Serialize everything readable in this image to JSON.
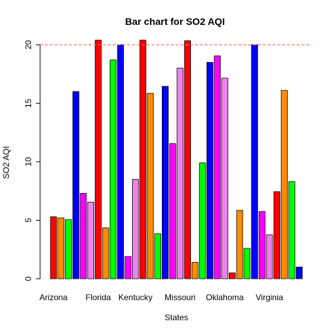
{
  "chart_data": {
    "type": "bar",
    "title": "Bar chart for SO2 AQI",
    "xlabel": "States",
    "ylabel": "SO2 AQI",
    "ylim": [
      0,
      20.4
    ],
    "yticks": [
      0,
      5,
      10,
      15,
      20
    ],
    "ytick_labels": [
      "0",
      "5",
      "10",
      "15",
      "20"
    ],
    "reference_line": {
      "y": 20,
      "style": "dashed",
      "color": "#ff6b6b"
    },
    "x_labels": [
      "Arizona",
      "Florida",
      "Kentucky",
      "Missouri",
      "Oklahoma",
      "Virginia"
    ],
    "x_label_bar_index": [
      0,
      6,
      11,
      17,
      23,
      29
    ],
    "values": [
      5.3,
      5.2,
      5.05,
      16.0,
      7.3,
      6.55,
      20.4,
      4.35,
      18.7,
      20.0,
      1.9,
      8.5,
      20.4,
      15.85,
      3.85,
      16.45,
      11.55,
      18.0,
      20.35,
      1.4,
      9.9,
      18.5,
      19.05,
      17.15,
      0.5,
      5.85,
      2.6,
      20.0,
      5.75,
      3.75,
      7.45,
      16.1,
      8.3,
      1.0
    ],
    "colors": [
      "#ff0000",
      "#ff8c00",
      "#00ff00",
      "#0000ff",
      "#ff00ff",
      "#ee82ee",
      "#ff0000",
      "#ff8c00",
      "#00ff00",
      "#0000ff",
      "#ff00ff",
      "#ee82ee",
      "#ff0000",
      "#ff8c00",
      "#00ff00",
      "#0000ff",
      "#ff00ff",
      "#ee82ee",
      "#ff0000",
      "#ff8c00",
      "#00ff00",
      "#0000ff",
      "#ff00ff",
      "#ee82ee",
      "#ff0000",
      "#ff8c00",
      "#00ff00",
      "#0000ff",
      "#ff00ff",
      "#ee82ee",
      "#ff0000",
      "#ff8c00",
      "#00ff00",
      "#0000ff"
    ],
    "grid": false,
    "legend": "none"
  }
}
